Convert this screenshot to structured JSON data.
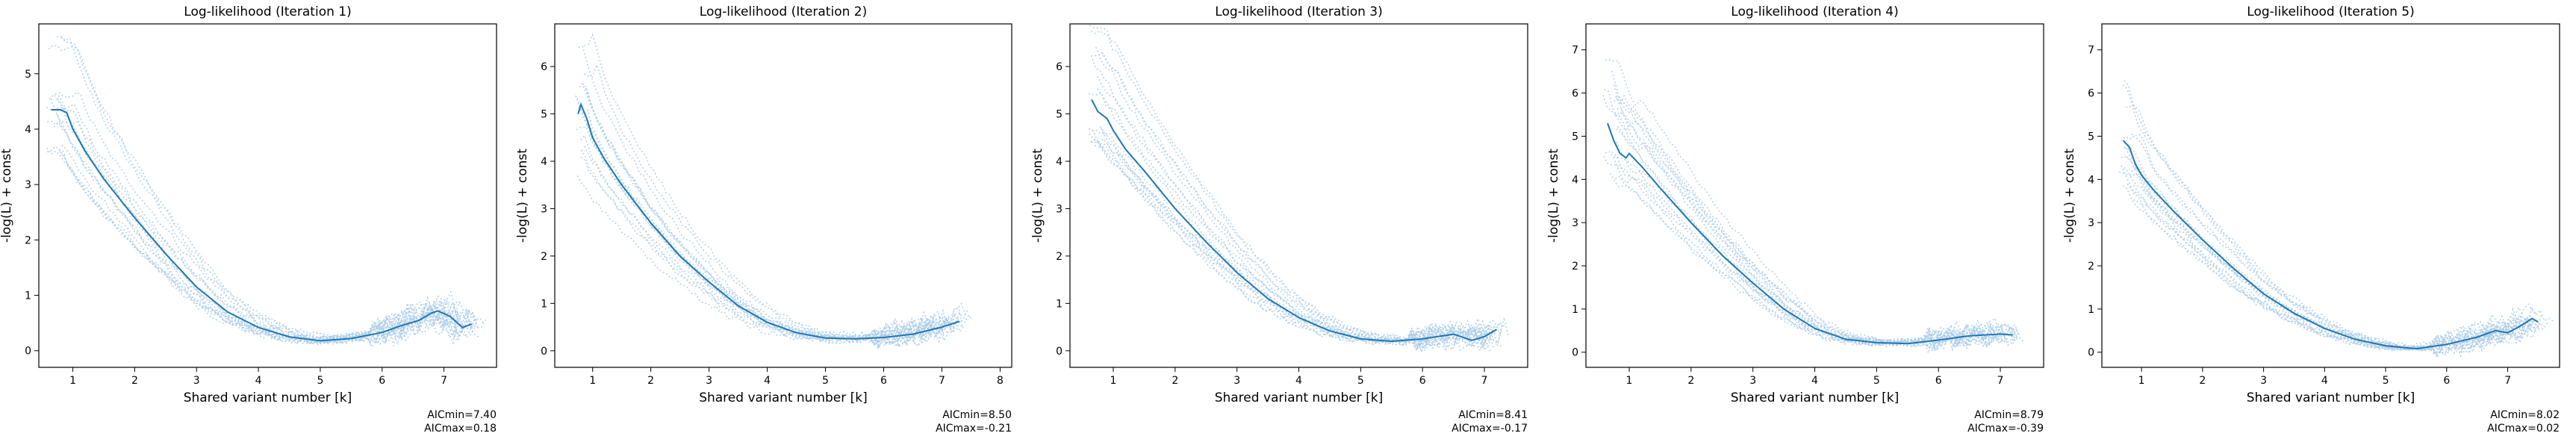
{
  "chart_data": [
    {
      "type": "line",
      "title": "Log-likelihood (Iteration 1)",
      "xlabel": "Shared variant number [k]",
      "ylabel": "-log(L) + const",
      "xlim": [
        0.45,
        7.85
      ],
      "ylim": [
        -0.3,
        5.9
      ],
      "xticks": [
        1,
        2,
        3,
        4,
        5,
        6,
        7
      ],
      "yticks": [
        0,
        1,
        2,
        3,
        4,
        5
      ],
      "grid": false,
      "aic_min": "AICmin=7.40",
      "aic_max": "AICmax=0.18",
      "series": [
        {
          "style": "solid",
          "x": [
            0.65,
            0.8,
            0.9,
            1.0,
            1.2,
            1.5,
            2.0,
            2.5,
            3.0,
            3.5,
            4.0,
            4.5,
            5.0,
            5.5,
            6.0,
            6.3,
            6.6,
            6.8,
            6.9,
            7.1,
            7.3,
            7.45
          ],
          "y": [
            4.35,
            4.35,
            4.3,
            4.0,
            3.6,
            3.1,
            2.4,
            1.75,
            1.15,
            0.7,
            0.42,
            0.25,
            0.18,
            0.22,
            0.33,
            0.45,
            0.55,
            0.68,
            0.72,
            0.62,
            0.42,
            0.48
          ]
        }
      ]
    },
    {
      "type": "line",
      "title": "Log-likelihood (Iteration 2)",
      "xlabel": "Shared variant number [k]",
      "ylabel": "-log(L) + const",
      "xlim": [
        0.35,
        8.2
      ],
      "ylim": [
        -0.35,
        6.9
      ],
      "xticks": [
        1,
        2,
        3,
        4,
        5,
        6,
        7,
        8
      ],
      "yticks": [
        0,
        1,
        2,
        3,
        4,
        5,
        6
      ],
      "grid": false,
      "aic_min": "AICmin=8.50",
      "aic_max": "AICmax=-0.21",
      "series": [
        {
          "style": "solid",
          "x": [
            0.75,
            0.8,
            0.9,
            1.0,
            1.2,
            1.5,
            2.0,
            2.5,
            3.0,
            3.5,
            4.0,
            4.5,
            5.0,
            5.5,
            6.0,
            6.5,
            7.0,
            7.3
          ],
          "y": [
            5.0,
            5.2,
            4.9,
            4.5,
            4.05,
            3.5,
            2.7,
            2.0,
            1.45,
            0.95,
            0.6,
            0.38,
            0.27,
            0.25,
            0.28,
            0.35,
            0.5,
            0.62
          ]
        }
      ]
    },
    {
      "type": "line",
      "title": "Log-likelihood (Iteration 3)",
      "xlabel": "Shared variant number [k]",
      "ylabel": "-log(L) + const",
      "xlim": [
        0.3,
        7.7
      ],
      "ylim": [
        -0.35,
        6.9
      ],
      "xticks": [
        1,
        2,
        3,
        4,
        5,
        6,
        7
      ],
      "yticks": [
        0,
        1,
        2,
        3,
        4,
        5,
        6
      ],
      "grid": false,
      "aic_min": "AICmin=8.41",
      "aic_max": "AICmax=-0.17",
      "series": [
        {
          "style": "solid",
          "x": [
            0.65,
            0.75,
            0.9,
            1.0,
            1.2,
            1.5,
            2.0,
            2.5,
            3.0,
            3.5,
            4.0,
            4.5,
            5.0,
            5.5,
            6.0,
            6.5,
            6.8,
            7.0,
            7.2
          ],
          "y": [
            5.3,
            5.05,
            4.9,
            4.65,
            4.25,
            3.8,
            3.0,
            2.3,
            1.65,
            1.1,
            0.7,
            0.42,
            0.25,
            0.2,
            0.25,
            0.35,
            0.22,
            0.3,
            0.45
          ]
        }
      ]
    },
    {
      "type": "line",
      "title": "Log-likelihood (Iteration 4)",
      "xlabel": "Shared variant number [k]",
      "ylabel": "-log(L) + const",
      "xlim": [
        0.3,
        7.7
      ],
      "ylim": [
        -0.35,
        7.6
      ],
      "xticks": [
        1,
        2,
        3,
        4,
        5,
        6,
        7
      ],
      "yticks": [
        0,
        1,
        2,
        3,
        4,
        5,
        6,
        7
      ],
      "grid": false,
      "aic_min": "AICmin=8.79",
      "aic_max": "AICmax=-0.39",
      "series": [
        {
          "style": "solid",
          "x": [
            0.65,
            0.75,
            0.85,
            0.95,
            1.0,
            1.2,
            1.5,
            2.0,
            2.5,
            3.0,
            3.5,
            4.0,
            4.5,
            5.0,
            5.5,
            6.0,
            6.5,
            7.0,
            7.2
          ],
          "y": [
            5.3,
            4.9,
            4.6,
            4.5,
            4.6,
            4.3,
            3.8,
            3.0,
            2.25,
            1.6,
            1.0,
            0.55,
            0.3,
            0.22,
            0.2,
            0.28,
            0.38,
            0.42,
            0.4
          ]
        }
      ]
    },
    {
      "type": "line",
      "title": "Log-likelihood (Iteration 5)",
      "xlabel": "Shared variant number [k]",
      "ylabel": "-log(L) + const",
      "xlim": [
        0.35,
        7.85
      ],
      "ylim": [
        -0.35,
        7.6
      ],
      "xticks": [
        1,
        2,
        3,
        4,
        5,
        6,
        7
      ],
      "yticks": [
        0,
        1,
        2,
        3,
        4,
        5,
        6,
        7
      ],
      "grid": false,
      "aic_min": "AICmin=8.02",
      "aic_max": "AICmax=0.02",
      "series": [
        {
          "style": "solid",
          "x": [
            0.7,
            0.8,
            0.9,
            1.0,
            1.2,
            1.5,
            2.0,
            2.5,
            3.0,
            3.5,
            4.0,
            4.5,
            5.0,
            5.5,
            6.0,
            6.5,
            6.8,
            7.0,
            7.2,
            7.4,
            7.5
          ],
          "y": [
            4.9,
            4.75,
            4.35,
            4.1,
            3.75,
            3.3,
            2.6,
            1.95,
            1.35,
            0.9,
            0.55,
            0.3,
            0.15,
            0.08,
            0.18,
            0.35,
            0.5,
            0.45,
            0.6,
            0.78,
            0.7
          ]
        }
      ]
    }
  ],
  "colors": {
    "main_line": "#1f77b4",
    "dotted_lines": "#a9cbe6"
  }
}
